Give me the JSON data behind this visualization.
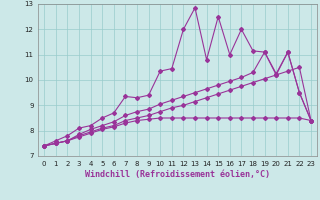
{
  "xlabel": "Windchill (Refroidissement éolien,°C)",
  "xlim": [
    -0.5,
    23.5
  ],
  "ylim": [
    7,
    13
  ],
  "xticks": [
    0,
    1,
    2,
    3,
    4,
    5,
    6,
    7,
    8,
    9,
    10,
    11,
    12,
    13,
    14,
    15,
    16,
    17,
    18,
    19,
    20,
    21,
    22,
    23
  ],
  "yticks": [
    7,
    8,
    9,
    10,
    11,
    12,
    13
  ],
  "bg_color": "#cce8e8",
  "grid_color": "#99cccc",
  "line_color": "#993399",
  "series": [
    {
      "x": [
        0,
        1,
        2,
        3,
        4,
        5,
        6,
        7,
        8,
        9,
        10,
        11,
        12,
        13,
        14,
        15,
        16,
        17,
        18,
        19,
        20,
        21,
        22,
        23
      ],
      "y": [
        7.4,
        7.6,
        7.8,
        8.1,
        8.2,
        8.5,
        8.7,
        9.35,
        9.3,
        9.4,
        10.35,
        10.45,
        12.0,
        12.85,
        10.8,
        12.5,
        11.0,
        12.0,
        11.15,
        11.1,
        10.25,
        11.1,
        9.5,
        8.4
      ]
    },
    {
      "x": [
        0,
        1,
        2,
        3,
        4,
        5,
        6,
        7,
        8,
        9,
        10,
        11,
        12,
        13,
        14,
        15,
        16,
        17,
        18,
        19,
        20,
        21,
        22,
        23
      ],
      "y": [
        7.4,
        7.5,
        7.6,
        7.85,
        8.05,
        8.2,
        8.35,
        8.6,
        8.75,
        8.85,
        9.05,
        9.2,
        9.35,
        9.5,
        9.65,
        9.8,
        9.95,
        10.1,
        10.3,
        11.1,
        10.2,
        11.1,
        9.5,
        8.4
      ]
    },
    {
      "x": [
        0,
        1,
        2,
        3,
        4,
        5,
        6,
        7,
        8,
        9,
        10,
        11,
        12,
        13,
        14,
        15,
        16,
        17,
        18,
        19,
        20,
        21,
        22,
        23
      ],
      "y": [
        7.4,
        7.5,
        7.6,
        7.8,
        7.95,
        8.1,
        8.2,
        8.4,
        8.5,
        8.6,
        8.75,
        8.9,
        9.0,
        9.15,
        9.3,
        9.45,
        9.6,
        9.75,
        9.9,
        10.05,
        10.2,
        10.35,
        10.5,
        8.4
      ]
    },
    {
      "x": [
        0,
        1,
        2,
        3,
        4,
        5,
        6,
        7,
        8,
        9,
        10,
        11,
        12,
        13,
        14,
        15,
        16,
        17,
        18,
        19,
        20,
        21,
        22,
        23
      ],
      "y": [
        7.4,
        7.5,
        7.6,
        7.75,
        7.9,
        8.05,
        8.15,
        8.3,
        8.4,
        8.45,
        8.5,
        8.5,
        8.5,
        8.5,
        8.5,
        8.5,
        8.5,
        8.5,
        8.5,
        8.5,
        8.5,
        8.5,
        8.5,
        8.4
      ]
    }
  ],
  "marker": "D",
  "markersize": 2.0,
  "linewidth": 0.8,
  "label_fontsize": 6.0,
  "tick_fontsize": 5.0
}
